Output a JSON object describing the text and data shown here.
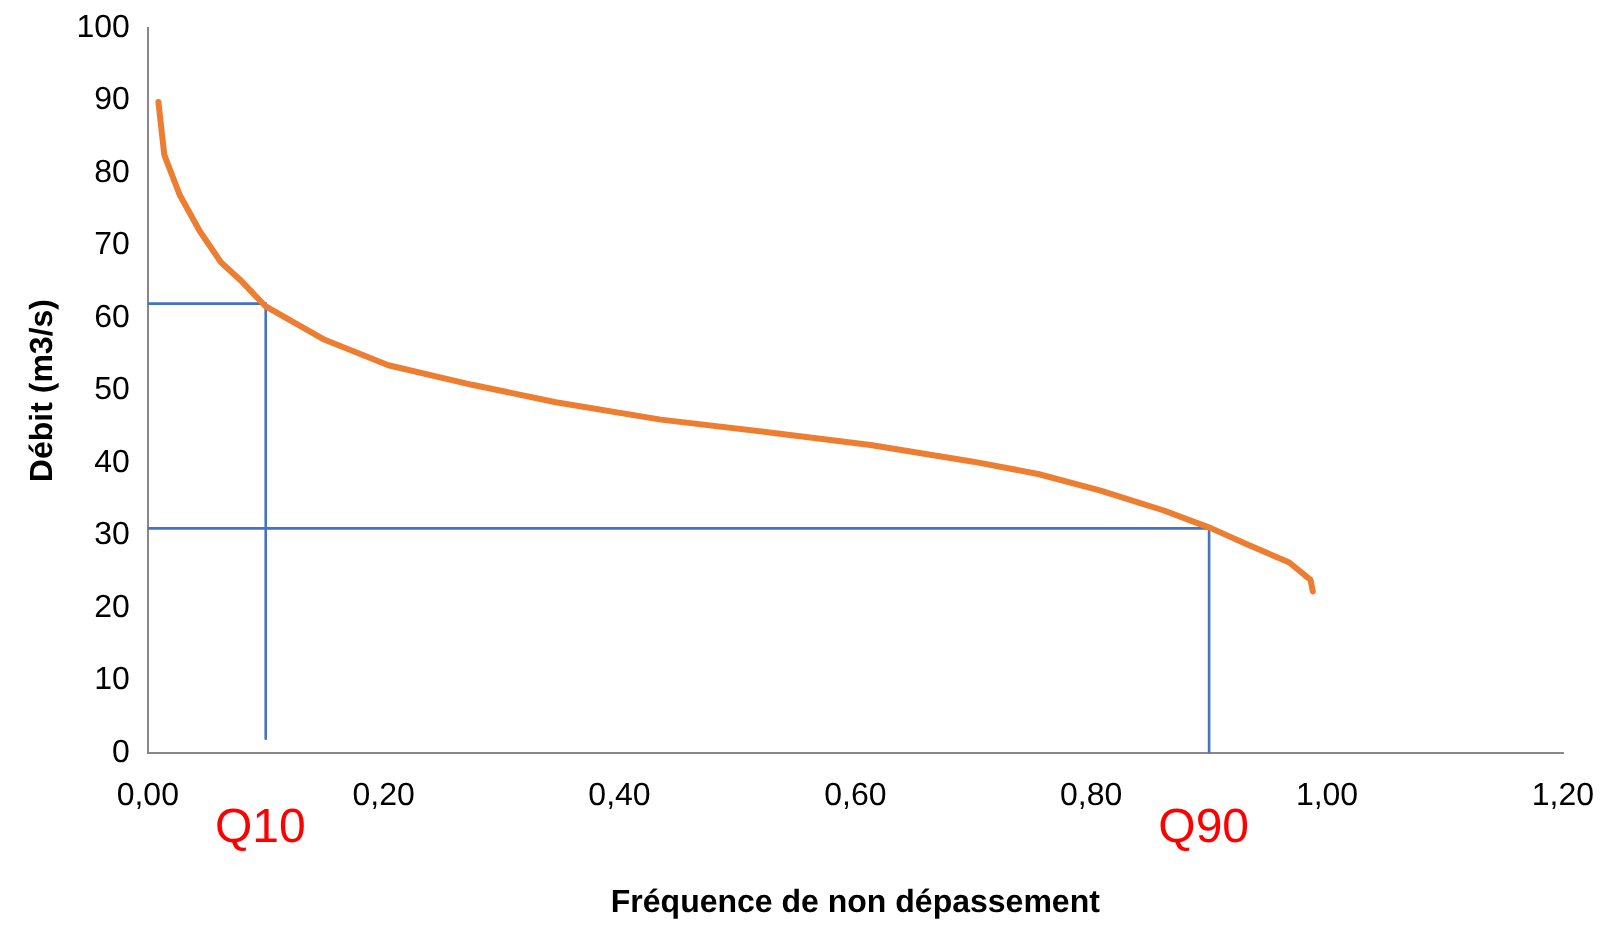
{
  "chart_data": {
    "type": "line",
    "xlabel": "Fréquence de non dépassement",
    "ylabel": "Débit (m3/s)",
    "xlim": [
      0,
      1.2
    ],
    "ylim": [
      0,
      100
    ],
    "xticks": [
      {
        "value": 0,
        "label": "0,00"
      },
      {
        "value": 0.2,
        "label": "0,20"
      },
      {
        "value": 0.4,
        "label": "0,40"
      },
      {
        "value": 0.6,
        "label": "0,60"
      },
      {
        "value": 0.8,
        "label": "0,80"
      },
      {
        "value": 1,
        "label": "1,00"
      },
      {
        "value": 1.2,
        "label": "1,20"
      }
    ],
    "yticks": [
      0,
      10,
      20,
      30,
      40,
      50,
      60,
      70,
      80,
      90,
      100
    ],
    "grid": false,
    "legend": false,
    "marker": "none",
    "line_style": "solid",
    "series": [
      {
        "color": "#ed7d31",
        "x": [
          0.009,
          0.014,
          0.027,
          0.044,
          0.062,
          0.08,
          0.1,
          0.15,
          0.204,
          0.275,
          0.346,
          0.435,
          0.524,
          0.613,
          0.7,
          0.755,
          0.808,
          0.861,
          0.902,
          0.932,
          0.968,
          0.986,
          0.988
        ],
        "values": [
          89.8,
          82.5,
          77,
          72,
          67.7,
          65,
          61.6,
          57,
          53.5,
          50.8,
          48.4,
          46,
          44.3,
          42.5,
          40.2,
          38.5,
          36.2,
          33.5,
          31,
          28.8,
          26.3,
          23.9,
          22.3
        ]
      },
      {
        "color": "#4472c4",
        "x": [
          0.1,
          0.1
        ],
        "values": [
          2,
          62
        ]
      },
      {
        "color": "#4472c4",
        "x": [
          0,
          0.1
        ],
        "values": [
          62,
          62
        ]
      },
      {
        "color": "#4472c4",
        "x": [
          0.9,
          0.9
        ],
        "values": [
          0,
          31
        ]
      },
      {
        "color": "#4472c4",
        "x": [
          0,
          0.9
        ],
        "values": [
          31,
          31
        ]
      }
    ],
    "annotations": [
      "Q10",
      "Q90"
    ]
  }
}
